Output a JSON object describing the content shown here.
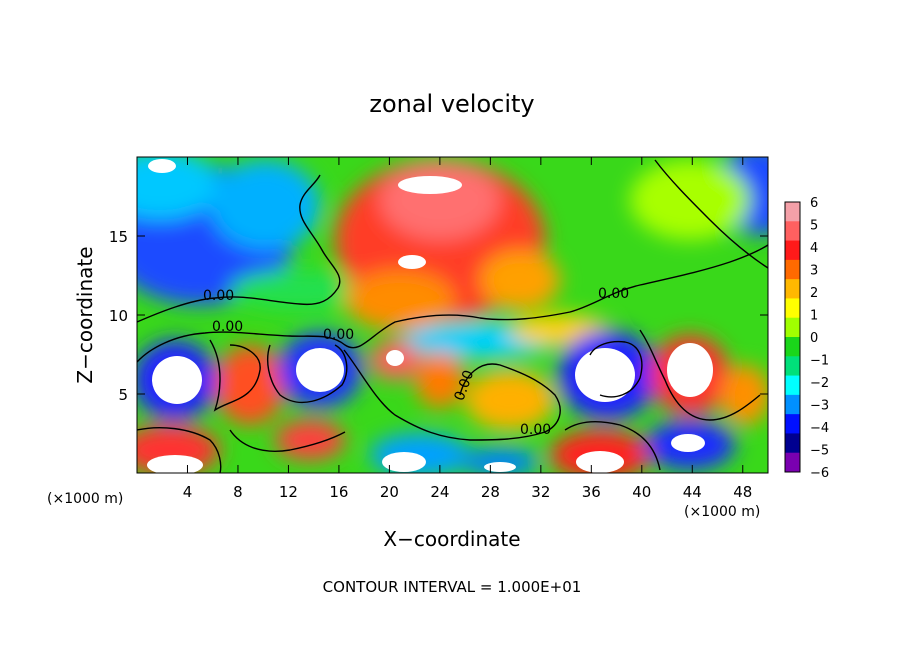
{
  "chart_data": {
    "type": "heatmap",
    "title": "zonal velocity",
    "xlabel": "X−coordinate",
    "ylabel": "Z−coordinate",
    "x_unit_left": "(×1000 m)",
    "x_unit_right": "(×1000 m)",
    "footer": "CONTOUR INTERVAL = 1.000E+01",
    "xlim": [
      0,
      50
    ],
    "ylim": [
      0,
      20
    ],
    "x_ticks": [
      4,
      8,
      12,
      16,
      20,
      24,
      28,
      32,
      36,
      40,
      44,
      48
    ],
    "y_ticks": [
      5,
      10,
      15
    ],
    "colorbar": {
      "min": -6,
      "max": 6,
      "ticks": [
        6,
        5,
        4,
        3,
        2,
        1,
        0,
        -1,
        -2,
        -3,
        -4,
        -5,
        -6
      ],
      "colors": [
        "#f4a0a8",
        "#ff6060",
        "#ff1a1a",
        "#ff6a00",
        "#ffb800",
        "#ffff00",
        "#a0ff00",
        "#1ad61a",
        "#00e07a",
        "#00ffff",
        "#0090ff",
        "#0010ff",
        "#000090",
        "#7a00b0"
      ]
    },
    "contour_labels": [
      {
        "text": "0.00",
        "x": 7,
        "z": 11
      },
      {
        "text": "0.00",
        "x": 7,
        "z": 9.1
      },
      {
        "text": "0.00",
        "x": 16.5,
        "z": 8.5
      },
      {
        "text": "0.00",
        "x": 41,
        "z": 11
      },
      {
        "text": "0.00",
        "x": 25,
        "z": 5.5
      },
      {
        "text": "0.00",
        "x": 32,
        "z": 2.8
      }
    ]
  }
}
